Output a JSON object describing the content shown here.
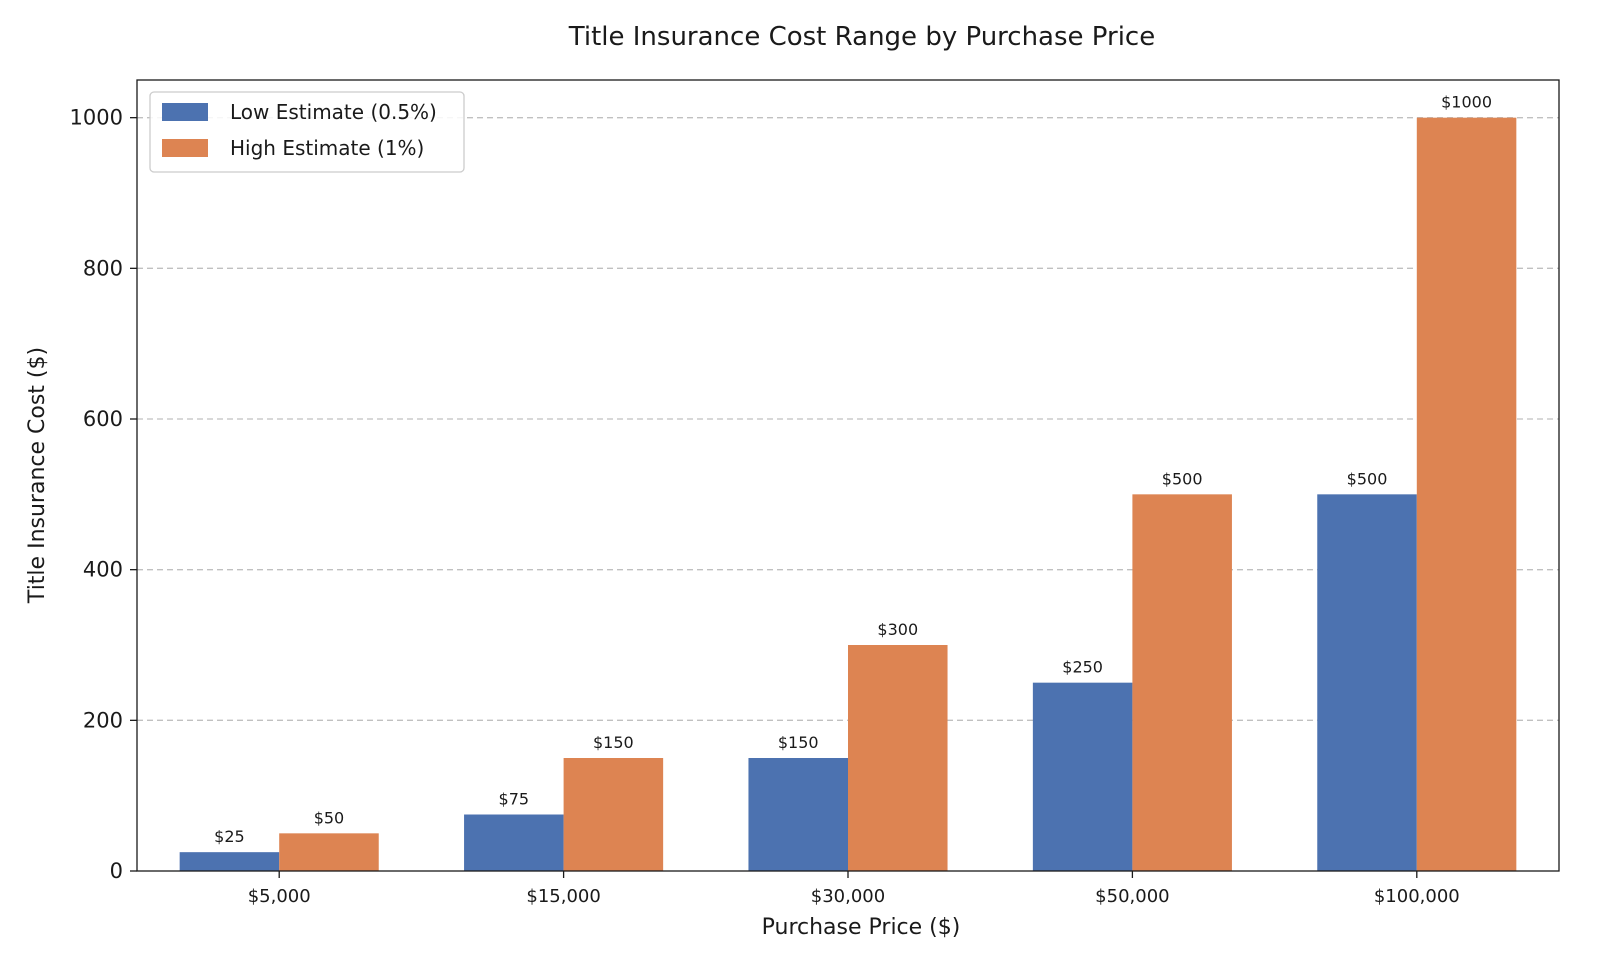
{
  "chart_data": {
    "type": "bar",
    "title": "Title Insurance Cost Range by Purchase Price",
    "xlabel": "Purchase Price ($)",
    "ylabel": "Title Insurance Cost ($)",
    "categories": [
      "$5,000",
      "$15,000",
      "$30,000",
      "$50,000",
      "$100,000"
    ],
    "series": [
      {
        "name": "Low Estimate (0.5%)",
        "color": "#4c72b0",
        "values": [
          25,
          75,
          150,
          250,
          500
        ],
        "labels": [
          "$25",
          "$75",
          "$150",
          "$250",
          "$500"
        ]
      },
      {
        "name": "High Estimate (1%)",
        "color": "#dd8452",
        "values": [
          50,
          150,
          300,
          500,
          1000
        ],
        "labels": [
          "$50",
          "$150",
          "$300",
          "$500",
          "$1000"
        ]
      }
    ],
    "ylim": [
      0,
      1050
    ],
    "yticks": [
      0,
      200,
      400,
      600,
      800,
      1000
    ],
    "grid": "y-dashed",
    "legend_position": "top-left"
  }
}
